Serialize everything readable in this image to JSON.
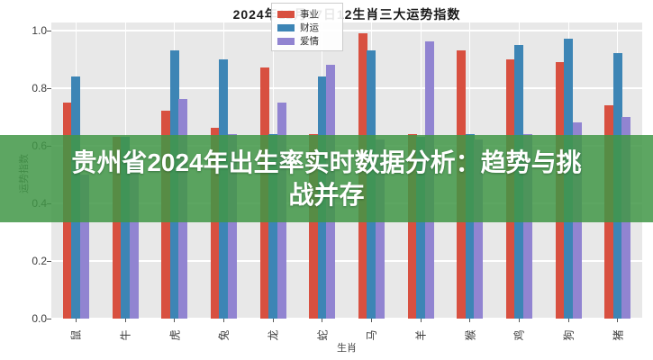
{
  "banner": {
    "full_text": "贵州省2024年出生率实时数据分析：趋势与挑战并存",
    "line1": "贵州省2024年出生率实时数据分析：趋势与挑",
    "line2": "战并存",
    "bg_color": "#419747",
    "text_color": "#ffffff"
  },
  "chart_data": {
    "type": "bar",
    "title": "2024年12月17日12生肖三大运势指数",
    "xlabel": "生肖",
    "ylabel": "运势指数",
    "ylim": [
      0,
      1.0
    ],
    "yticks": [
      0.0,
      0.2,
      0.4,
      0.6,
      0.8,
      1.0
    ],
    "grid": true,
    "legend_position": "upper right inside plot",
    "plot_bg_color": "#e8e8e8",
    "grid_color": "#ffffff",
    "categories": [
      "鼠",
      "牛",
      "虎",
      "兔",
      "龙",
      "蛇",
      "马",
      "羊",
      "猴",
      "鸡",
      "狗",
      "猪"
    ],
    "series": [
      {
        "name": "事业",
        "color": "#d85040",
        "values": [
          0.75,
          0.63,
          0.72,
          0.66,
          0.87,
          0.64,
          0.99,
          0.64,
          0.93,
          0.9,
          0.89,
          0.74
        ]
      },
      {
        "name": "财运",
        "color": "#3d85b5",
        "values": [
          0.84,
          0.63,
          0.93,
          0.9,
          0.64,
          0.84,
          0.93,
          0.63,
          0.64,
          0.95,
          0.97,
          0.92
        ]
      },
      {
        "name": "爱情",
        "color": "#9184d1",
        "values": [
          0.5,
          0.58,
          0.76,
          0.64,
          0.75,
          0.88,
          0.62,
          0.96,
          0.62,
          0.64,
          0.68,
          0.7
        ]
      }
    ]
  }
}
